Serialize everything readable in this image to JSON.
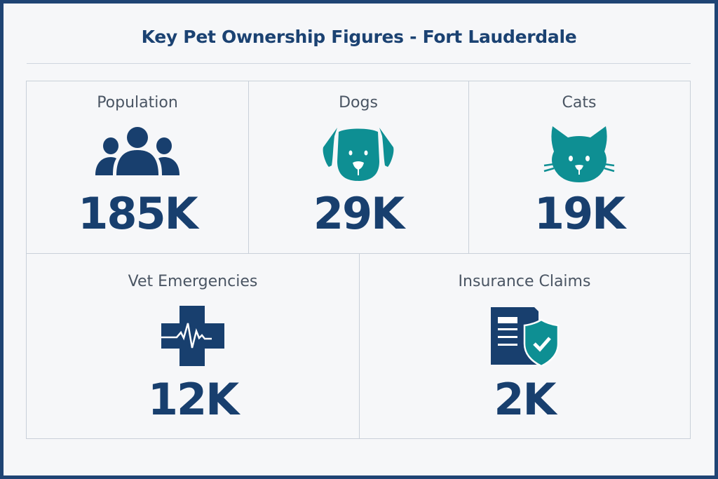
{
  "title": "Key Pet Ownership Figures - Fort Lauderdale",
  "colors": {
    "navy": "#183f6e",
    "teal": "#0e8f93",
    "frame": "#1f4474",
    "background": "#f6f7f9"
  },
  "stats": [
    {
      "label": "Population",
      "value": "185K",
      "icon": "people-icon"
    },
    {
      "label": "Dogs",
      "value": "29K",
      "icon": "dog-icon"
    },
    {
      "label": "Cats",
      "value": "19K",
      "icon": "cat-icon"
    },
    {
      "label": "Vet Emergencies",
      "value": "12K",
      "icon": "medical-cross-heartbeat-icon"
    },
    {
      "label": "Insurance Claims",
      "value": "2K",
      "icon": "document-shield-check-icon"
    }
  ]
}
